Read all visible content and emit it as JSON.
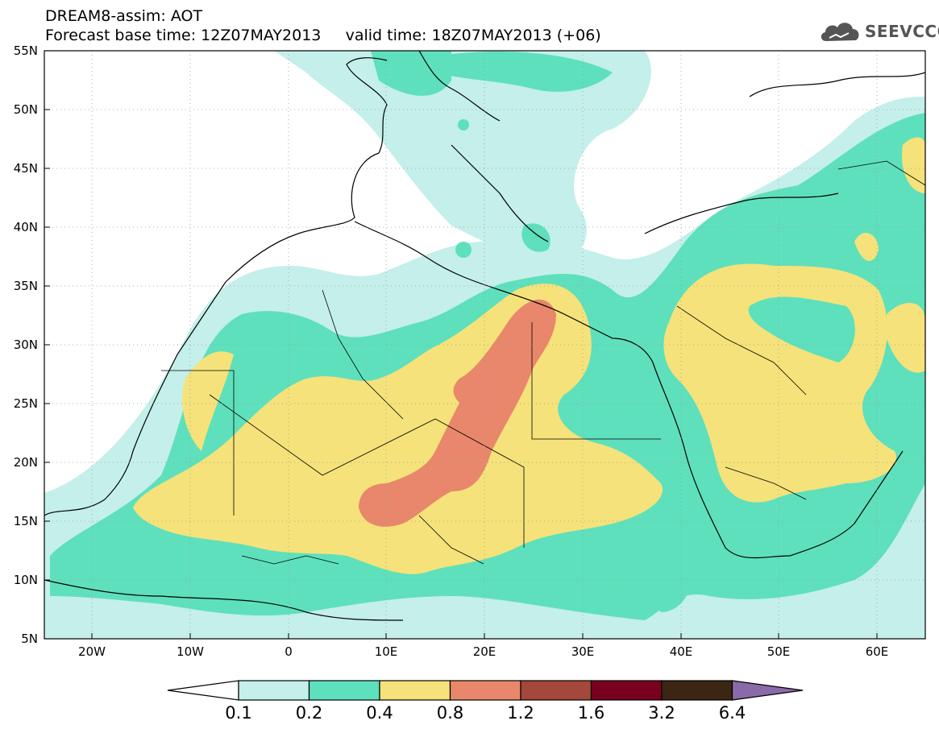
{
  "header": {
    "title_line1": "DREAM8-assim: AOT",
    "title_line2": "Forecast base time: 12Z07MAY2013     valid time: 18Z07MAY2013 (+06)",
    "brand": "SEEVCCC"
  },
  "map": {
    "lon_ticks": [
      "20W",
      "10W",
      "0",
      "10E",
      "20E",
      "30E",
      "40E",
      "50E",
      "60E"
    ],
    "lat_ticks": [
      "55N",
      "50N",
      "45N",
      "40N",
      "35N",
      "30N",
      "25N",
      "20N",
      "15N",
      "10N",
      "5N"
    ],
    "lon_range": [
      -25,
      65
    ],
    "lat_range": [
      5,
      55
    ],
    "grid": "dotted"
  },
  "legend": {
    "labels": [
      "0.1",
      "0.2",
      "0.4",
      "0.8",
      "1.2",
      "1.6",
      "3.2",
      "6.4"
    ],
    "colors": [
      "#ffffff",
      "#c4efea",
      "#5ee0bc",
      "#f5e27a",
      "#e8876b",
      "#a3483a",
      "#78001e",
      "#3b2614",
      "#8a6aa8"
    ]
  },
  "colors": {
    "c01": "#c4efea",
    "c02": "#5ee0bc",
    "c04": "#f5e27a",
    "c08": "#e8876b"
  }
}
